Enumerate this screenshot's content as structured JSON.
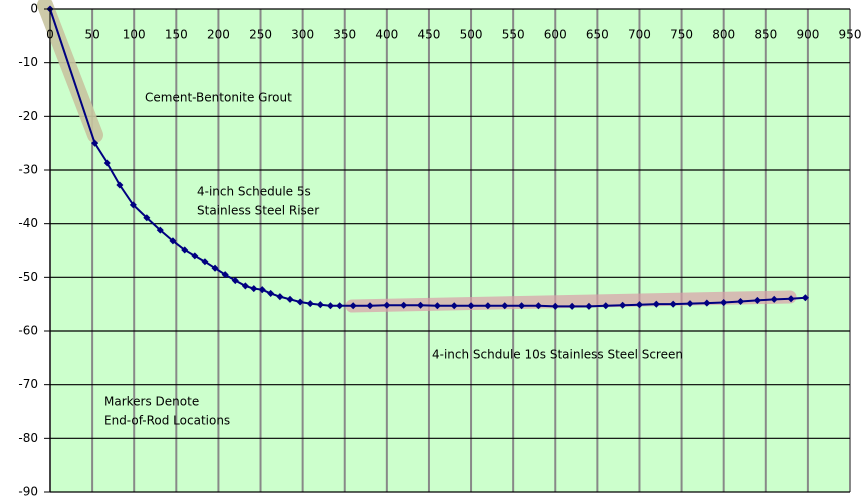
{
  "chart_data": {
    "type": "line",
    "annotations": [
      "Cement-Bentonite Grout",
      "4-inch Schedule 5s",
      "Stainless Steel Riser",
      "4-inch Schdule 10s Stainless Steel Screen",
      "Markers Denote",
      "End-of-Rod Locations"
    ],
    "x": [
      0,
      53,
      68,
      83,
      99,
      115,
      131,
      146,
      160,
      172,
      184,
      196,
      208,
      220,
      232,
      242,
      252,
      262,
      273,
      285,
      297,
      309,
      321,
      333,
      344,
      360,
      380,
      400,
      420,
      440,
      460,
      480,
      500,
      520,
      540,
      560,
      580,
      600,
      620,
      640,
      660,
      680,
      700,
      720,
      740,
      760,
      780,
      800,
      820,
      840,
      860,
      880,
      897
    ],
    "series": [
      {
        "color": "#000080",
        "values": [
          0,
          -25,
          -28.7,
          -32.8,
          -36.5,
          -38.9,
          -41.2,
          -43.2,
          -44.9,
          -46,
          -47.1,
          -48.3,
          -49.5,
          -50.6,
          -51.6,
          -52.1,
          -52.3,
          -53,
          -53.6,
          -54.1,
          -54.6,
          -54.9,
          -55.1,
          -55.3,
          -55.3,
          -55.3,
          -55.3,
          -55.2,
          -55.2,
          -55.2,
          -55.3,
          -55.3,
          -55.3,
          -55.3,
          -55.3,
          -55.3,
          -55.3,
          -55.4,
          -55.4,
          -55.4,
          -55.3,
          -55.2,
          -55.1,
          -55,
          -55,
          -54.9,
          -54.8,
          -54.7,
          -54.5,
          -54.3,
          -54.1,
          -54,
          -53.8
        ]
      }
    ],
    "xlim": [
      0,
      950
    ],
    "xticks": [
      0,
      50,
      100,
      150,
      200,
      250,
      300,
      350,
      400,
      450,
      500,
      550,
      600,
      650,
      700,
      750,
      800,
      850,
      900,
      950
    ],
    "ylim": [
      -90,
      0
    ],
    "yticks": [
      0,
      -10,
      -20,
      -30,
      -40,
      -50,
      -60,
      -70,
      -80,
      -90
    ],
    "grid": true
  }
}
